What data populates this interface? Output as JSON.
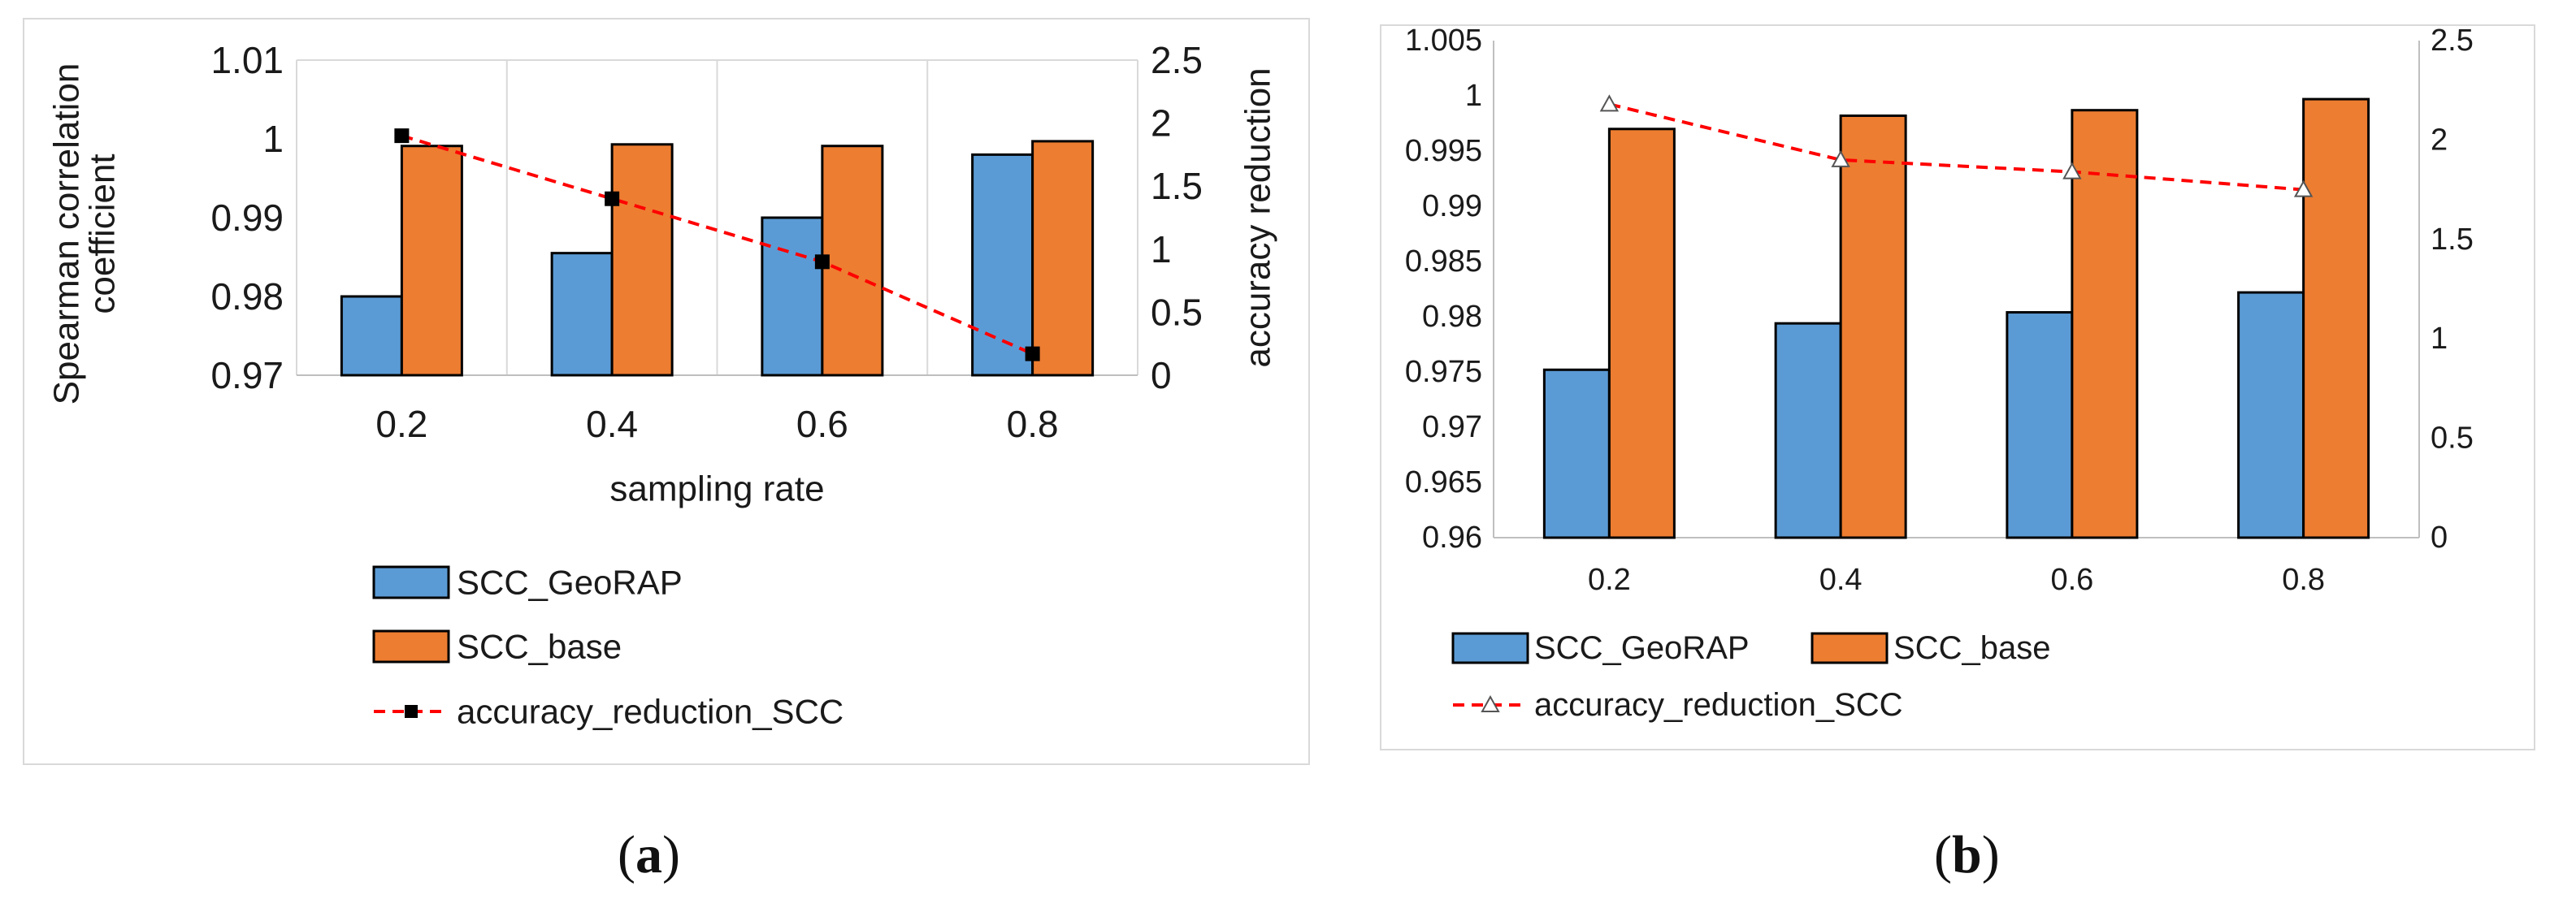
{
  "chart_data": [
    {
      "type": "bar",
      "panel": "a",
      "categories": [
        "0.2",
        "0.4",
        "0.6",
        "0.8"
      ],
      "series": [
        {
          "name": "SCC_GeoRAP",
          "kind": "bar",
          "axis": "left",
          "color": "#5b9bd5",
          "values": [
            0.98,
            0.9855,
            0.99,
            0.998
          ]
        },
        {
          "name": "SCC_base",
          "kind": "bar",
          "axis": "left",
          "color": "#ed7d31",
          "values": [
            0.9991,
            0.9993,
            0.9991,
            0.9997
          ]
        },
        {
          "name": "accuracy_reduction_SCC",
          "kind": "line",
          "axis": "right",
          "color": "#ff0000",
          "marker": "square",
          "values": [
            1.9,
            1.4,
            0.9,
            0.17
          ]
        }
      ],
      "xlabel": "sampling rate",
      "ylabel": "Spearman correlation coefficient",
      "y2label": "accuracy reduction",
      "ylim": [
        0.97,
        1.01
      ],
      "yticks": [
        "0.97",
        "0.98",
        "0.99",
        "1",
        "1.01"
      ],
      "y2lim": [
        0,
        2.5
      ],
      "y2ticks": [
        "0",
        "0.5",
        "1",
        "1.5",
        "2",
        "2.5"
      ],
      "grid": "vertical",
      "legend": "bottom"
    },
    {
      "type": "bar",
      "panel": "b",
      "categories": [
        "0.2",
        "0.4",
        "0.6",
        "0.8"
      ],
      "series": [
        {
          "name": "SCC_GeoRAP",
          "kind": "bar",
          "axis": "left",
          "color": "#5b9bd5",
          "values": [
            0.9752,
            0.9794,
            0.9804,
            0.9822
          ]
        },
        {
          "name": "SCC_base",
          "kind": "bar",
          "axis": "left",
          "color": "#ed7d31",
          "values": [
            0.997,
            0.9982,
            0.9987,
            0.9997
          ]
        },
        {
          "name": "accuracy_reduction_SCC",
          "kind": "line",
          "axis": "right",
          "color": "#ff0000",
          "marker": "triangle",
          "values": [
            2.18,
            1.9,
            1.84,
            1.75
          ]
        }
      ],
      "xlabel": "",
      "ylabel": "",
      "y2label": "",
      "ylim": [
        0.96,
        1.005
      ],
      "yticks": [
        "0.96",
        "0.965",
        "0.97",
        "0.975",
        "0.98",
        "0.985",
        "0.99",
        "0.995",
        "1",
        "1.005"
      ],
      "y2lim": [
        0,
        2.5
      ],
      "y2ticks": [
        "0",
        "0.5",
        "1",
        "1.5",
        "2",
        "2.5"
      ],
      "grid": "none",
      "legend": "bottom"
    }
  ],
  "captions": {
    "a": {
      "open": "(",
      "letter": "a",
      "close": ")"
    },
    "b": {
      "open": "(",
      "letter": "b",
      "close": ")"
    }
  },
  "ylabel_a_lines": [
    "Spearman correlation",
    "coefficient"
  ]
}
